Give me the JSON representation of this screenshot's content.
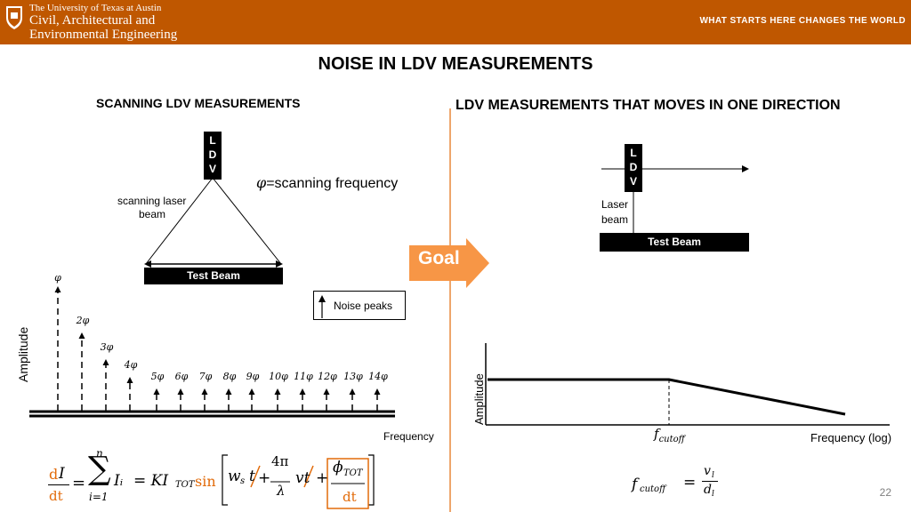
{
  "header": {
    "university": "The University of Texas at Austin",
    "dept_line1": "Civil, Architectural and",
    "dept_line2": "Environmental Engineering",
    "tagline": "WHAT STARTS HERE CHANGES THE WORLD",
    "brand_color": "#bf5700",
    "logo_icon": "ut-seal-icon"
  },
  "slide": {
    "title": "NOISE IN LDV MEASUREMENTS",
    "page_number": "22"
  },
  "left": {
    "subtitle": "SCANNING LDV MEASUREMENTS",
    "ldv_letters": [
      "L",
      "D",
      "V"
    ],
    "beam_label_1": "scanning laser",
    "beam_label_2": "beam",
    "test_beam": "Test Beam",
    "phi_symbol": "φ",
    "phi_def": "=scanning frequency",
    "legend_label": "Noise peaks",
    "y_axis": "Amplitude",
    "x_axis": "Frequency",
    "peak_labels": [
      "φ",
      "2φ",
      "3φ",
      "4φ",
      "5φ",
      "6φ",
      "7φ",
      "8φ",
      "9φ",
      "10φ",
      "11φ",
      "12φ",
      "13φ",
      "14φ"
    ]
  },
  "goal": {
    "label": "Goal",
    "color": "#f79646"
  },
  "right": {
    "subtitle": "LDV MEASUREMENTS THAT MOVES IN ONE DIRECTION",
    "ldv_letters": [
      "L",
      "D",
      "V"
    ],
    "beam_label_1": "Laser",
    "beam_label_2": "beam",
    "test_beam": "Test Beam",
    "y_axis": "Amplitude",
    "x_axis": "Frequency (log)",
    "cutoff_label": "fcutoff"
  },
  "equations": {
    "left_d": "d",
    "left_I": "I",
    "left_dt": "dt",
    "eq": "=",
    "sum_top": "n",
    "sum_sym": "∑",
    "sum_bottom": "i=1",
    "Ii": "Iᵢ",
    "KItot": "= KI",
    "tot": "TOT",
    "sin": "sin",
    "ws": "w",
    "s": "s",
    "t1": "t",
    "plus": "+",
    "frac_num": "4π",
    "frac_den": "λ",
    "vt": "vt",
    "phi_tot": "ϕ",
    "dt_box": "dt",
    "cutoff_lhs": "f",
    "cutoff_sub": "cutoff",
    "cutoff_eq": "=",
    "cutoff_num": "v",
    "cutoff_num_sub": "l",
    "cutoff_den": "d",
    "cutoff_den_sub": "l"
  }
}
